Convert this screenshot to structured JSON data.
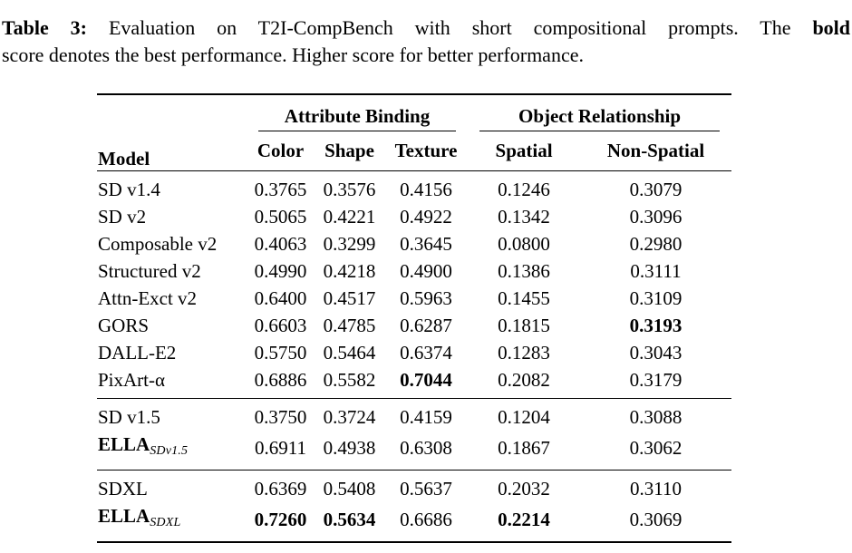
{
  "colors": {
    "text": "#000000",
    "background": "#ffffff",
    "rule": "#000000"
  },
  "caption": {
    "label": "Table 3:",
    "body": "Evaluation on T2I-CompBench with short compositional prompts. The",
    "bold_word": "bold",
    "line2": "score denotes the best performance. Higher score for better performance."
  },
  "table": {
    "header": {
      "model": "Model",
      "group1": "Attribute Binding",
      "group2": "Object Relationship",
      "columns": [
        "Color",
        "Shape",
        "Texture",
        "Spatial",
        "Non-Spatial"
      ]
    },
    "groups": [
      {
        "rows": [
          {
            "model": "SD v1.4",
            "model_bold": false,
            "subscript": "",
            "values": [
              "0.3765",
              "0.3576",
              "0.4156",
              "0.1246",
              "0.3079"
            ],
            "bold": [
              false,
              false,
              false,
              false,
              false
            ]
          },
          {
            "model": "SD v2",
            "model_bold": false,
            "subscript": "",
            "values": [
              "0.5065",
              "0.4221",
              "0.4922",
              "0.1342",
              "0.3096"
            ],
            "bold": [
              false,
              false,
              false,
              false,
              false
            ]
          },
          {
            "model": "Composable v2",
            "model_bold": false,
            "subscript": "",
            "values": [
              "0.4063",
              "0.3299",
              "0.3645",
              "0.0800",
              "0.2980"
            ],
            "bold": [
              false,
              false,
              false,
              false,
              false
            ]
          },
          {
            "model": "Structured v2",
            "model_bold": false,
            "subscript": "",
            "values": [
              "0.4990",
              "0.4218",
              "0.4900",
              "0.1386",
              "0.3111"
            ],
            "bold": [
              false,
              false,
              false,
              false,
              false
            ]
          },
          {
            "model": "Attn-Exct v2",
            "model_bold": false,
            "subscript": "",
            "values": [
              "0.6400",
              "0.4517",
              "0.5963",
              "0.1455",
              "0.3109"
            ],
            "bold": [
              false,
              false,
              false,
              false,
              false
            ]
          },
          {
            "model": "GORS",
            "model_bold": false,
            "subscript": "",
            "values": [
              "0.6603",
              "0.4785",
              "0.6287",
              "0.1815",
              "0.3193"
            ],
            "bold": [
              false,
              false,
              false,
              false,
              true
            ]
          },
          {
            "model": "DALL-E2",
            "model_bold": false,
            "subscript": "",
            "values": [
              "0.5750",
              "0.5464",
              "0.6374",
              "0.1283",
              "0.3043"
            ],
            "bold": [
              false,
              false,
              false,
              false,
              false
            ]
          },
          {
            "model": "PixArt-α",
            "model_bold": false,
            "subscript": "",
            "values": [
              "0.6886",
              "0.5582",
              "0.7044",
              "0.2082",
              "0.3179"
            ],
            "bold": [
              false,
              false,
              true,
              false,
              false
            ]
          }
        ]
      },
      {
        "rows": [
          {
            "model": "SD v1.5",
            "model_bold": false,
            "subscript": "",
            "values": [
              "0.3750",
              "0.3724",
              "0.4159",
              "0.1204",
              "0.3088"
            ],
            "bold": [
              false,
              false,
              false,
              false,
              false
            ]
          },
          {
            "model": "ELLA",
            "model_bold": true,
            "subscript": "SDv1.5",
            "values": [
              "0.6911",
              "0.4938",
              "0.6308",
              "0.1867",
              "0.3062"
            ],
            "bold": [
              false,
              false,
              false,
              false,
              false
            ]
          }
        ]
      },
      {
        "rows": [
          {
            "model": "SDXL",
            "model_bold": false,
            "subscript": "",
            "values": [
              "0.6369",
              "0.5408",
              "0.5637",
              "0.2032",
              "0.3110"
            ],
            "bold": [
              false,
              false,
              false,
              false,
              false
            ]
          },
          {
            "model": "ELLA",
            "model_bold": true,
            "subscript": "SDXL",
            "values": [
              "0.7260",
              "0.5634",
              "0.6686",
              "0.2214",
              "0.3069"
            ],
            "bold": [
              true,
              true,
              false,
              true,
              false
            ]
          }
        ]
      }
    ]
  }
}
